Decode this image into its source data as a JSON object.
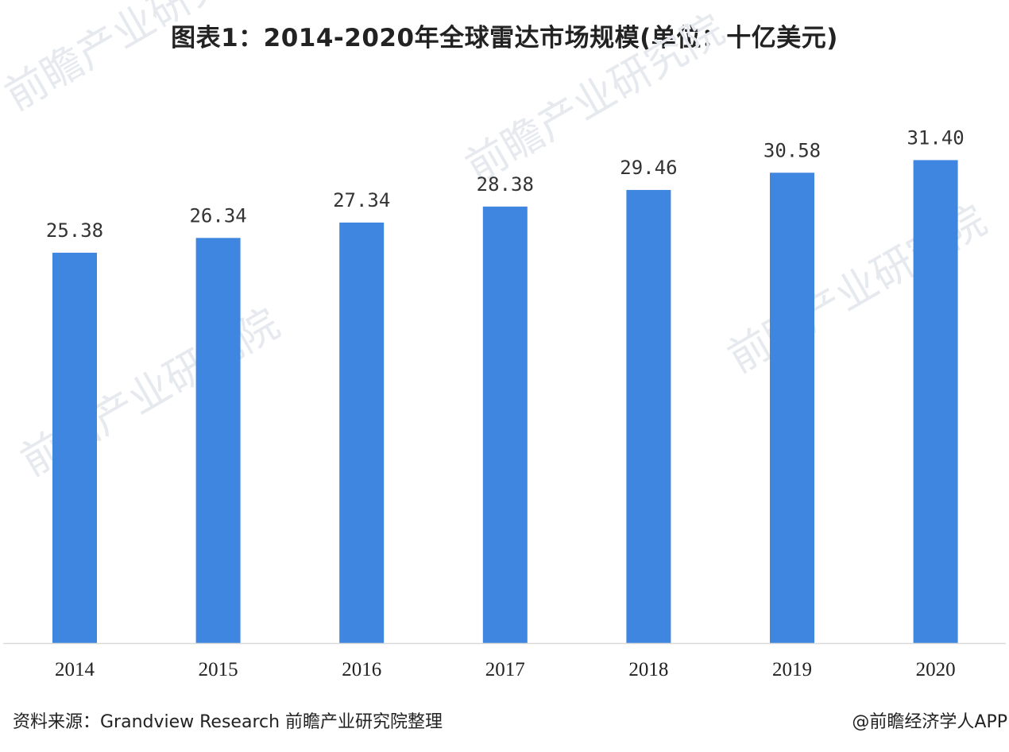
{
  "title": "图表1：2014-2020年全球雷达市场规模(单位：十亿美元)",
  "source": "资料来源：Grandview Research 前瞻产业研究院整理",
  "credit": "@前瞻经济学人APP",
  "watermark": "前瞻产业研究院",
  "colors": {
    "bar": "#3f86e0",
    "axis": "#d9d9d9"
  },
  "chart_data": {
    "type": "bar",
    "categories": [
      "2014",
      "2015",
      "2016",
      "2017",
      "2018",
      "2019",
      "2020"
    ],
    "values": [
      25.38,
      26.34,
      27.34,
      28.38,
      29.46,
      30.58,
      31.4
    ],
    "value_labels": [
      "25.38",
      "26.34",
      "27.34",
      "28.38",
      "29.46",
      "30.58",
      "31.40"
    ],
    "title": "图表1：2014-2020年全球雷达市场规模(单位：十亿美元)",
    "xlabel": "",
    "ylabel": "",
    "ylim": [
      0,
      38
    ],
    "grid": false,
    "legend": "none"
  }
}
